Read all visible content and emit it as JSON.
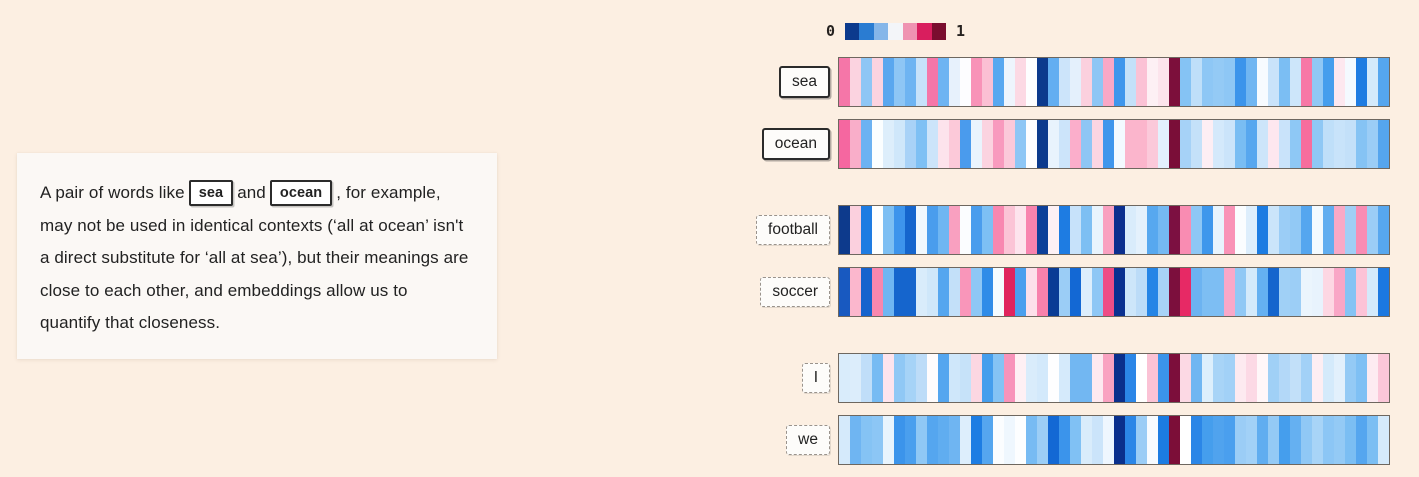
{
  "card": {
    "text_before": "A pair of words like",
    "word1": "sea",
    "text_middle": "and",
    "word2": "ocean",
    "text_after": ", for example, may not be used in identical contexts (‘all at ocean’ isn't a direct substitute for ‘all at sea’), but their meanings are close to each other, and embeddings allow us to quantify that closeness."
  },
  "legend": {
    "min_label": "0",
    "max_label": "1",
    "colors": [
      "#0c3a8d",
      "#2a7cd2",
      "#85b6e9",
      "#f3f5f9",
      "#ef93b2",
      "#d91e5e",
      "#7a0d2f"
    ]
  },
  "chart_data": {
    "type": "heatmap",
    "value_range": [
      0,
      1
    ],
    "colorscale_description": "diverging: 0 = dark navy blue, 0.5 = white, 1 = dark maroon red",
    "dimensions_per_row": 50,
    "rows": [
      {
        "label": "sea",
        "box_style": "solid",
        "cells": [
          "#f576a8",
          "#fbd3e0",
          "#8ec6f5",
          "#fbd3e0",
          "#5aa7ef",
          "#8ec6f5",
          "#6eb4f2",
          "#c7e2fa",
          "#f576a8",
          "#6eb4f2",
          "#e7f1fc",
          "#fdfdff",
          "#f893b8",
          "#fbc0d4",
          "#58a8f0",
          "#eef5fd",
          "#fcd9e4",
          "#fdfeff",
          "#0c3a8d",
          "#63aef1",
          "#cce4fa",
          "#e4f0fc",
          "#fbd0de",
          "#8ec6f5",
          "#f9a8c6",
          "#3e96ec",
          "#c4e1f9",
          "#fbc2d5",
          "#fdf0f4",
          "#fce4ec",
          "#7c0f3b",
          "#85c3f4",
          "#bfdff9",
          "#8ec7f5",
          "#94caf5",
          "#8ec7f5",
          "#3b94eb",
          "#70b6f2",
          "#f7fbff",
          "#c9e3fa",
          "#7bbef3",
          "#cde6fa",
          "#f778a6",
          "#90c8f5",
          "#459eed",
          "#fde8ef",
          "#f4faff",
          "#1e7ce2",
          "#d4eafb",
          "#55a6ef"
        ]
      },
      {
        "label": "ocean",
        "box_style": "solid",
        "cells": [
          "#f567a0",
          "#f9aec9",
          "#6cb2f2",
          "#fbfeff",
          "#ddeefb",
          "#cfe7fa",
          "#a8d2f7",
          "#7ec0f4",
          "#cce4fa",
          "#fde3ec",
          "#fcc9d9",
          "#4a9bed",
          "#eaf4fd",
          "#fbd3e0",
          "#f89abe",
          "#fbc9da",
          "#8ec6f5",
          "#fdfdff",
          "#0c3a8d",
          "#e8f3fd",
          "#cce4fa",
          "#fbaecb",
          "#8ec6f5",
          "#fbd5e2",
          "#3f96ec",
          "#f3faff",
          "#fbb5cc",
          "#fbb5cc",
          "#fbc9da",
          "#e3f1fd",
          "#7a0e38",
          "#a6d2f7",
          "#c4e1f9",
          "#fdeef4",
          "#d4e9fb",
          "#cbe4fa",
          "#79bdf3",
          "#57a7ef",
          "#cde5fa",
          "#fde7ef",
          "#c9e3fa",
          "#8ec8f5",
          "#f66d9d",
          "#8fc8f5",
          "#bfdff9",
          "#c8e3fa",
          "#c3e0f9",
          "#85c3f4",
          "#9bcdf6",
          "#55a5ee"
        ]
      },
      {
        "label": "football",
        "box_style": "dashed",
        "cells": [
          "#0d3a8c",
          "#fbd0de",
          "#1e7ce2",
          "#fdffff",
          "#7dbff3",
          "#3d94ec",
          "#1565cd",
          "#f0f8fe",
          "#4a9ded",
          "#6fb6f2",
          "#f9a0c0",
          "#fbfdff",
          "#4a9ded",
          "#7dc0f4",
          "#f887b0",
          "#fbc4d6",
          "#fde4ed",
          "#f883ae",
          "#0c3f99",
          "#fdf1f5",
          "#1e7ce2",
          "#c7e2fa",
          "#7dbff3",
          "#e8f4fd",
          "#f9a0c0",
          "#0b2f8e",
          "#d9ecfb",
          "#e4f1fc",
          "#57a8ef",
          "#75b9f2",
          "#7c1041",
          "#f98cb2",
          "#8ec7f5",
          "#3e97ec",
          "#e8f4fd",
          "#f993b7",
          "#fafdff",
          "#ddeefc",
          "#1c7ce2",
          "#cbe5fa",
          "#9bcdf6",
          "#92c9f5",
          "#55a6ef",
          "#f3faff",
          "#60adf0",
          "#f9a9c6",
          "#a0cff6",
          "#f98cb4",
          "#9bcdf6",
          "#57a7ef"
        ]
      },
      {
        "label": "soccer",
        "box_style": "dashed",
        "cells": [
          "#1859c0",
          "#fbb7cd",
          "#1663cd",
          "#f887ae",
          "#6fb6f2",
          "#1565cd",
          "#1565cd",
          "#d9ecfb",
          "#cfe7fa",
          "#55a6ef",
          "#c3e0f9",
          "#f996ba",
          "#8ec7f5",
          "#2f8ce8",
          "#f4fbff",
          "#e0245e",
          "#4a9fee",
          "#fde0ea",
          "#f881ac",
          "#0a3c95",
          "#9bcdf6",
          "#1368d4",
          "#ddeefc",
          "#8ec7f5",
          "#ee4d86",
          "#0a3090",
          "#cde6fa",
          "#bcdcf8",
          "#2585e6",
          "#a8d3f7",
          "#7c0f3d",
          "#e72965",
          "#6cb3f1",
          "#7dbef3",
          "#7dbef3",
          "#f9a8c8",
          "#90c8f5",
          "#d4eafb",
          "#65b0f1",
          "#1565cd",
          "#a0d0f6",
          "#9ccef6",
          "#ebf5fd",
          "#e8f3fd",
          "#fdd7e3",
          "#f9a6c6",
          "#85c3f4",
          "#fcc3d7",
          "#d4eafb",
          "#1b78e0"
        ]
      },
      {
        "label": "I",
        "box_style": "dashed",
        "cells": [
          "#d9ecfb",
          "#dcedfb",
          "#c0def9",
          "#77bbf3",
          "#fde4ed",
          "#90c8f5",
          "#a6d3f7",
          "#bddcf8",
          "#fffcfd",
          "#55a6ef",
          "#cfe7fa",
          "#c6e2f9",
          "#fcd7e2",
          "#459eed",
          "#85c3f4",
          "#f893ba",
          "#fef0f4",
          "#d9ecfb",
          "#d3e9fb",
          "#fefeff",
          "#d5eafb",
          "#72b7f2",
          "#72b7f2",
          "#fde9f0",
          "#f9a2c1",
          "#0a2f8c",
          "#2b86e7",
          "#ffffff",
          "#fbc2d5",
          "#3b94eb",
          "#7c0e3b",
          "#fcd9e4",
          "#70b6f2",
          "#ddeffc",
          "#a8d4f7",
          "#a2d1f7",
          "#fdeaf0",
          "#fcd9e5",
          "#fff7f9",
          "#a0d0f6",
          "#b3d8f8",
          "#c2e0f9",
          "#a2d1f7",
          "#fdeef3",
          "#d4eafb",
          "#e2f0fc",
          "#94caf5",
          "#7fc0f4",
          "#fdebf1",
          "#fbc7d9"
        ]
      },
      {
        "label": "we",
        "box_style": "dashed",
        "cells": [
          "#d5eafb",
          "#6fb5f2",
          "#85c3f4",
          "#8cc6f5",
          "#e8f4fd",
          "#3b94eb",
          "#4a9fee",
          "#90c8f5",
          "#55a6ef",
          "#60adf0",
          "#6fb5f2",
          "#ddeefc",
          "#1d7de3",
          "#55a6ef",
          "#fbfdff",
          "#eff7fe",
          "#fdfeff",
          "#77bbf3",
          "#9ccef6",
          "#1368d4",
          "#3b94eb",
          "#80c1f4",
          "#d9ecfb",
          "#cbe4fa",
          "#eef6fe",
          "#0a2f8c",
          "#2b86e7",
          "#9bcdf6",
          "#f7fbff",
          "#1c7ce2",
          "#7c0e38",
          "#ffffff",
          "#2b86e7",
          "#459eed",
          "#50a3ee",
          "#4a9fee",
          "#9bcdf6",
          "#a2d1f7",
          "#60adf0",
          "#94caf5",
          "#459eed",
          "#65b0f1",
          "#90c8f5",
          "#a8d4f7",
          "#8cc6f5",
          "#94caf5",
          "#7bbef3",
          "#55a6ef",
          "#7bbef3",
          "#d5eafb"
        ]
      }
    ]
  }
}
